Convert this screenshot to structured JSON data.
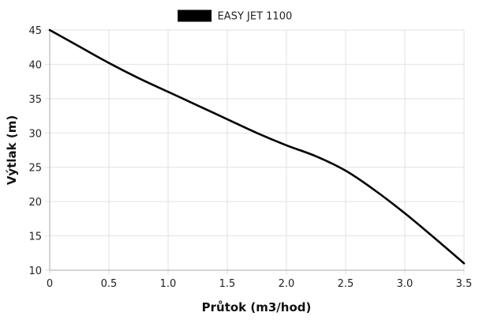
{
  "chart_data": {
    "type": "line",
    "title": "",
    "xlabel": "Průtok (m3/hod)",
    "ylabel": "Výtlak (m)",
    "xlim": [
      0,
      3.5
    ],
    "ylim": [
      10,
      45
    ],
    "x_ticks": [
      0,
      0.5,
      1.0,
      1.5,
      2.0,
      2.5,
      3.0,
      3.5
    ],
    "x_tick_labels": [
      "0",
      "0.5",
      "1.0",
      "1.5",
      "2.0",
      "2.5",
      "3.0",
      "3.5"
    ],
    "y_ticks": [
      10,
      15,
      20,
      25,
      30,
      35,
      40,
      45
    ],
    "y_tick_labels": [
      "10",
      "15",
      "20",
      "25",
      "30",
      "35",
      "40",
      "45"
    ],
    "grid": true,
    "legend_position": "top-center",
    "series": [
      {
        "name": "EASY JET 1100",
        "color": "#000000",
        "x": [
          0,
          0.25,
          0.5,
          0.75,
          1.0,
          1.25,
          1.5,
          1.75,
          2.0,
          2.25,
          2.5,
          2.75,
          3.0,
          3.25,
          3.5
        ],
        "y": [
          45,
          42.6,
          40.2,
          38.0,
          36.0,
          34.0,
          32.0,
          30.0,
          28.2,
          26.6,
          24.5,
          21.6,
          18.3,
          14.7,
          11
        ]
      }
    ]
  }
}
